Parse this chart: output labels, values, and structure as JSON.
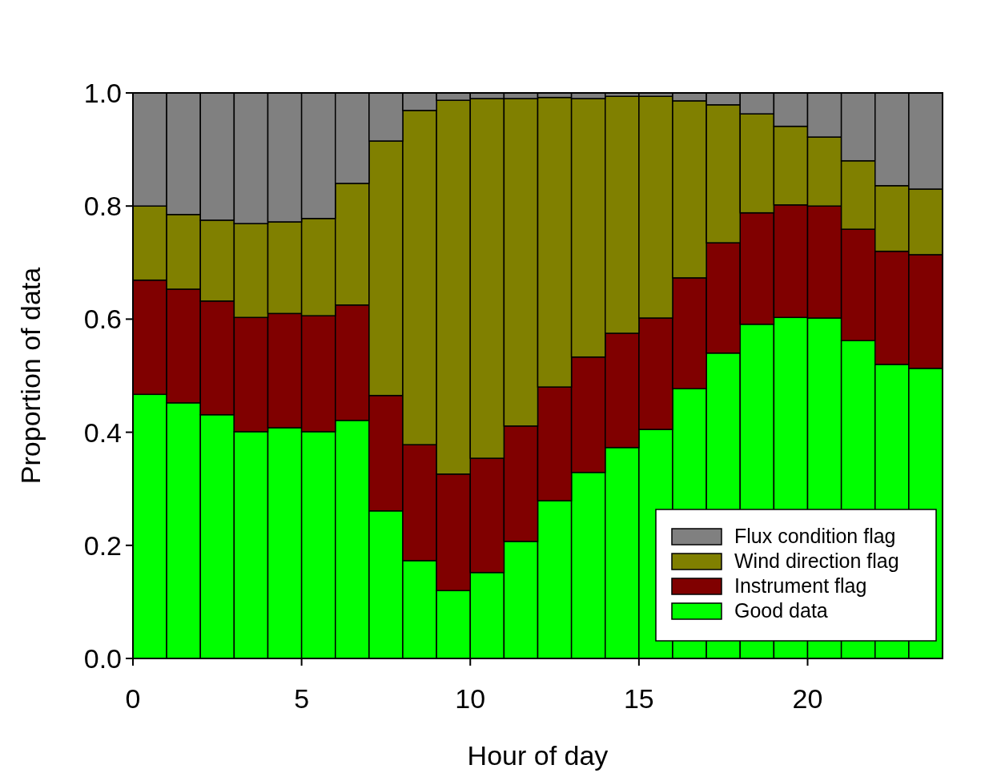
{
  "chart_data": {
    "type": "bar",
    "stacked": true,
    "xlabel": "Hour of day",
    "ylabel": "Proportion of data",
    "x": [
      0.5,
      1.5,
      2.5,
      3.5,
      4.5,
      5.5,
      6.5,
      7.5,
      8.5,
      9.5,
      10.5,
      11.5,
      12.5,
      13.5,
      14.5,
      15.5,
      16.5,
      17.5,
      18.5,
      19.5,
      20.5,
      21.5,
      22.5,
      23.5
    ],
    "xlim": [
      0,
      24
    ],
    "xticks": [
      0,
      5,
      10,
      15,
      20
    ],
    "ylim": [
      0,
      1
    ],
    "yticks": [
      {
        "value": 0,
        "label": "0.0"
      },
      {
        "value": 0.2,
        "label": "0.2"
      },
      {
        "value": 0.4,
        "label": "0.4"
      },
      {
        "value": 0.6,
        "label": "0.6"
      },
      {
        "value": 0.8,
        "label": "0.8"
      },
      {
        "value": 1,
        "label": "1.0"
      }
    ],
    "legend": "bottom right",
    "series": [
      {
        "name": "Good data",
        "color": "#00ff00",
        "values": [
          0.467,
          0.452,
          0.431,
          0.401,
          0.408,
          0.401,
          0.421,
          0.261,
          0.173,
          0.12,
          0.152,
          0.207,
          0.279,
          0.329,
          0.373,
          0.405,
          0.477,
          0.54,
          0.591,
          0.603,
          0.602,
          0.562,
          0.52,
          0.513
        ]
      },
      {
        "name": "Instrument flag",
        "color": "#800000",
        "values": [
          0.202,
          0.201,
          0.201,
          0.202,
          0.202,
          0.205,
          0.204,
          0.204,
          0.205,
          0.206,
          0.202,
          0.204,
          0.201,
          0.204,
          0.202,
          0.197,
          0.196,
          0.195,
          0.197,
          0.199,
          0.198,
          0.197,
          0.2,
          0.201
        ]
      },
      {
        "name": "Wind direction flag",
        "color": "#808000",
        "values": [
          0.131,
          0.132,
          0.143,
          0.166,
          0.162,
          0.172,
          0.215,
          0.45,
          0.591,
          0.661,
          0.636,
          0.579,
          0.512,
          0.457,
          0.419,
          0.392,
          0.313,
          0.244,
          0.175,
          0.139,
          0.122,
          0.121,
          0.116,
          0.116
        ]
      },
      {
        "name": "Flux condition flag",
        "color": "#808080",
        "values": [
          0.2,
          0.215,
          0.225,
          0.231,
          0.228,
          0.222,
          0.16,
          0.085,
          0.031,
          0.013,
          0.01,
          0.01,
          0.008,
          0.01,
          0.006,
          0.006,
          0.014,
          0.021,
          0.037,
          0.059,
          0.078,
          0.12,
          0.164,
          0.17
        ]
      }
    ]
  }
}
